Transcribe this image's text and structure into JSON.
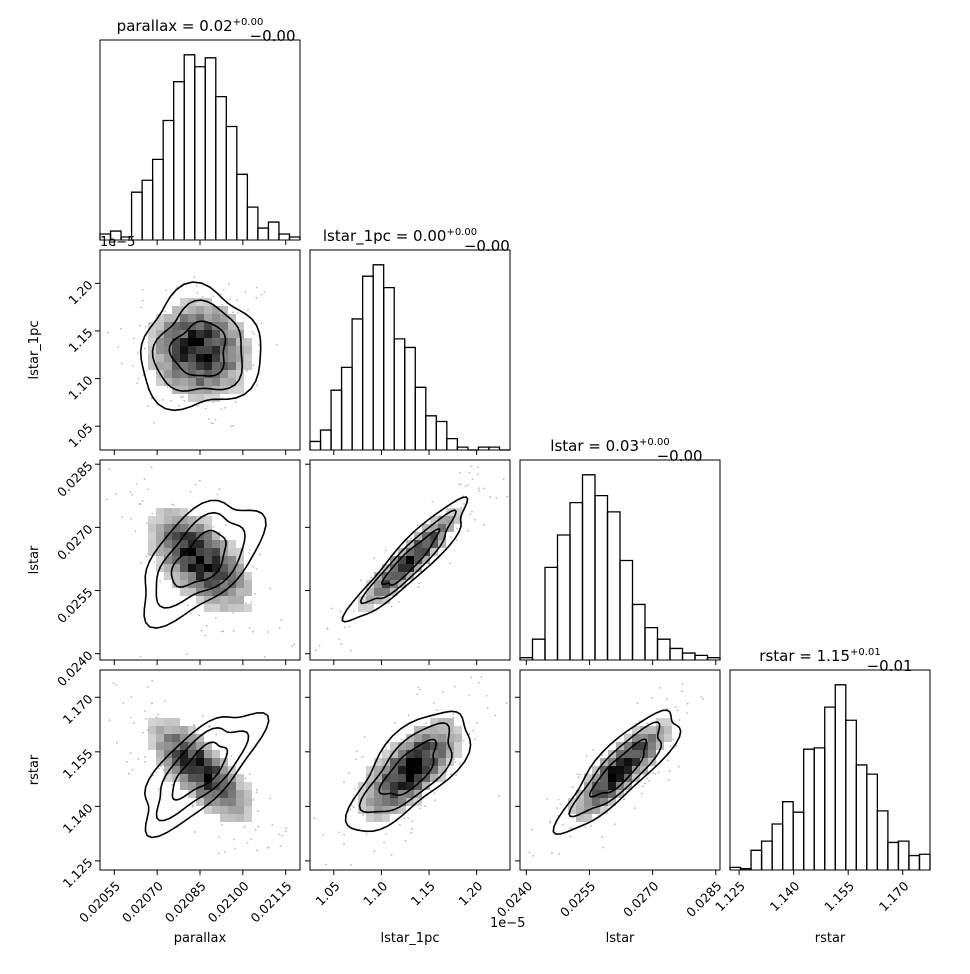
{
  "chart_data": {
    "type": "corner",
    "params": [
      {
        "name": "parallax",
        "title_value": "0.02",
        "title_plus": "+0.00",
        "title_minus": "−0.00",
        "range": [
          0.0205,
          0.0212
        ],
        "ticks": [
          "0.02055",
          "0.02070",
          "0.02085",
          "0.02100",
          "0.02115"
        ],
        "tick_values": [
          0.02055,
          0.0207,
          0.02085,
          0.021,
          0.02115
        ],
        "hist_counts": [
          2,
          3,
          1,
          16,
          20,
          27,
          40,
          53,
          62,
          58,
          61,
          48,
          38,
          22,
          11,
          4,
          6,
          2,
          1
        ]
      },
      {
        "name": "lstar_1pc",
        "title_value": "0.00",
        "title_plus": "+0.00",
        "title_minus": "−0.00",
        "offset_text": "1e−5",
        "range": [
          1.025,
          1.235
        ],
        "ticks": [
          "1.05",
          "1.10",
          "1.15",
          "1.20"
        ],
        "tick_values": [
          1.05,
          1.1,
          1.15,
          1.2
        ],
        "hist_counts": [
          3,
          7,
          21,
          29,
          46,
          61,
          65,
          57,
          39,
          36,
          22,
          12,
          10,
          4,
          1,
          0,
          1,
          1,
          0
        ]
      },
      {
        "name": "lstar",
        "title_value": "0.03",
        "title_plus": "+0.00",
        "title_minus": "−0.00",
        "range": [
          0.02385,
          0.0286
        ],
        "ticks": [
          "0.0240",
          "0.0255",
          "0.0270",
          "0.0285"
        ],
        "tick_values": [
          0.024,
          0.0255,
          0.027,
          0.0285
        ],
        "hist_counts": [
          1,
          9,
          40,
          54,
          68,
          80,
          71,
          64,
          43,
          24,
          14,
          9,
          5,
          3,
          2,
          1
        ]
      },
      {
        "name": "rstar",
        "title_value": "1.15",
        "title_plus": "+0.01",
        "title_minus": "−0.01",
        "range": [
          1.1225,
          1.1775
        ],
        "ticks": [
          "1.125",
          "1.140",
          "1.155",
          "1.170"
        ],
        "tick_values": [
          1.125,
          1.14,
          1.155,
          1.17
        ],
        "hist_counts": [
          2,
          1,
          15,
          22,
          35,
          52,
          44,
          92,
          93,
          124,
          141,
          114,
          80,
          73,
          45,
          21,
          22,
          11,
          12
        ]
      }
    ],
    "correlations": {
      "1-0": -0.05,
      "2-0": -0.55,
      "2-1": 0.92,
      "3-0": -0.72,
      "3-1": 0.7,
      "3-2": 0.85
    }
  }
}
